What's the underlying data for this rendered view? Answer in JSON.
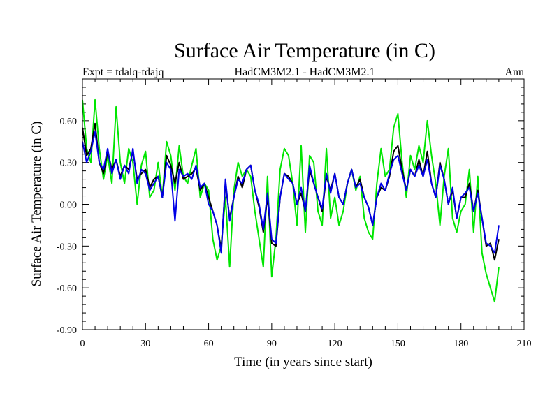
{
  "chart_data": {
    "type": "line",
    "title": "Surface Air Temperature (in C)",
    "subtitle_left": "Expt = tdalq-tdajq",
    "subtitle_center": "HadCM3M2.1 - HadCM3M2.1",
    "subtitle_right": "Ann",
    "xlabel": "Time (in years since start)",
    "ylabel": "Surface Air Temperature (in C)",
    "xlim": [
      0,
      210
    ],
    "ylim": [
      -0.9,
      0.9
    ],
    "xticks": [
      0,
      30,
      60,
      90,
      120,
      150,
      180,
      210
    ],
    "xtick_labels": [
      "0",
      "30",
      "60",
      "90",
      "120",
      "150",
      "180",
      "210"
    ],
    "yticks": [
      -0.9,
      -0.6,
      -0.3,
      0.0,
      0.3,
      0.6
    ],
    "ytick_labels": [
      "-0.90",
      "-0.60",
      "-0.30",
      "0.00",
      "0.30",
      "0.60"
    ],
    "x": [
      0,
      2,
      4,
      6,
      8,
      10,
      12,
      14,
      16,
      18,
      20,
      22,
      24,
      26,
      28,
      30,
      32,
      34,
      36,
      38,
      40,
      42,
      44,
      46,
      48,
      50,
      52,
      54,
      56,
      58,
      60,
      62,
      64,
      66,
      68,
      70,
      72,
      74,
      76,
      78,
      80,
      82,
      84,
      86,
      88,
      90,
      92,
      94,
      96,
      98,
      100,
      102,
      104,
      106,
      108,
      110,
      112,
      114,
      116,
      118,
      120,
      122,
      124,
      126,
      128,
      130,
      132,
      134,
      136,
      138,
      140,
      142,
      144,
      146,
      148,
      150,
      152,
      154,
      156,
      158,
      160,
      162,
      164,
      166,
      168,
      170,
      172,
      174,
      176,
      178,
      180,
      182,
      184,
      186,
      188,
      190,
      192,
      194,
      196,
      198
    ],
    "series": [
      {
        "name": "black",
        "color": "#000000",
        "values": [
          0.55,
          0.35,
          0.4,
          0.58,
          0.3,
          0.22,
          0.38,
          0.25,
          0.32,
          0.2,
          0.28,
          0.25,
          0.38,
          0.18,
          0.22,
          0.25,
          0.12,
          0.18,
          0.2,
          0.05,
          0.35,
          0.28,
          0.15,
          0.3,
          0.18,
          0.2,
          0.22,
          0.26,
          0.1,
          0.15,
          0.05,
          -0.05,
          -0.15,
          -0.32,
          0.15,
          -0.1,
          0.05,
          0.2,
          0.12,
          0.25,
          0.28,
          0.1,
          -0.02,
          -0.2,
          0.05,
          -0.28,
          -0.3,
          0.05,
          0.22,
          0.2,
          0.15,
          0.0,
          0.08,
          -0.05,
          0.25,
          0.15,
          0.05,
          -0.05,
          0.2,
          0.1,
          0.22,
          0.05,
          0.0,
          0.15,
          0.25,
          0.12,
          0.18,
          0.05,
          -0.02,
          -0.15,
          0.05,
          0.12,
          0.1,
          0.2,
          0.38,
          0.42,
          0.25,
          0.1,
          0.25,
          0.2,
          0.32,
          0.2,
          0.38,
          0.15,
          0.05,
          0.3,
          0.18,
          0.0,
          0.1,
          -0.1,
          0.05,
          0.05,
          0.15,
          -0.05,
          0.1,
          -0.1,
          -0.3,
          -0.28,
          -0.4,
          -0.25
        ]
      },
      {
        "name": "green",
        "color": "#00e600",
        "values": [
          0.75,
          0.4,
          0.3,
          0.75,
          0.4,
          0.18,
          0.35,
          0.15,
          0.7,
          0.3,
          0.15,
          0.4,
          0.3,
          0.0,
          0.28,
          0.38,
          0.05,
          0.1,
          0.3,
          0.05,
          0.45,
          0.35,
          0.1,
          0.42,
          0.2,
          0.15,
          0.28,
          0.4,
          0.05,
          0.15,
          0.1,
          -0.25,
          -0.4,
          -0.3,
          0.05,
          -0.45,
          0.1,
          0.3,
          0.2,
          0.25,
          0.2,
          -0.05,
          -0.25,
          -0.45,
          0.2,
          -0.52,
          -0.25,
          0.25,
          0.4,
          0.35,
          0.15,
          -0.15,
          0.42,
          -0.2,
          0.35,
          0.3,
          -0.05,
          -0.15,
          0.4,
          -0.1,
          0.05,
          -0.15,
          -0.05,
          0.15,
          0.25,
          0.1,
          0.2,
          -0.1,
          -0.2,
          -0.25,
          0.15,
          0.4,
          0.2,
          0.25,
          0.55,
          0.65,
          0.3,
          0.05,
          0.35,
          0.25,
          0.42,
          0.3,
          0.6,
          0.35,
          0.15,
          -0.15,
          0.2,
          0.4,
          -0.1,
          -0.2,
          -0.05,
          0.0,
          0.25,
          -0.2,
          0.2,
          -0.35,
          -0.5,
          -0.6,
          -0.7,
          -0.45
        ]
      },
      {
        "name": "blue",
        "color": "#0000e6",
        "values": [
          0.45,
          0.3,
          0.38,
          0.52,
          0.3,
          0.25,
          0.4,
          0.22,
          0.32,
          0.18,
          0.28,
          0.22,
          0.4,
          0.15,
          0.25,
          0.22,
          0.1,
          0.15,
          0.2,
          0.05,
          0.3,
          0.25,
          -0.12,
          0.25,
          0.2,
          0.22,
          0.18,
          0.28,
          0.12,
          0.15,
          0.0,
          -0.05,
          -0.15,
          -0.35,
          0.18,
          -0.12,
          0.05,
          0.18,
          0.15,
          0.25,
          0.28,
          0.1,
          0.0,
          -0.18,
          0.08,
          -0.25,
          -0.28,
          0.05,
          0.22,
          0.18,
          0.15,
          0.0,
          0.12,
          -0.05,
          0.28,
          0.15,
          0.05,
          -0.03,
          0.22,
          0.08,
          0.22,
          0.05,
          0.0,
          0.15,
          0.25,
          0.12,
          0.15,
          0.05,
          -0.02,
          -0.15,
          0.05,
          0.15,
          0.1,
          0.22,
          0.32,
          0.35,
          0.22,
          0.1,
          0.25,
          0.2,
          0.28,
          0.2,
          0.32,
          0.15,
          0.05,
          0.28,
          0.18,
          0.0,
          0.12,
          -0.1,
          0.05,
          0.08,
          0.12,
          -0.05,
          0.08,
          -0.1,
          -0.28,
          -0.3,
          -0.35,
          -0.15
        ]
      }
    ]
  }
}
